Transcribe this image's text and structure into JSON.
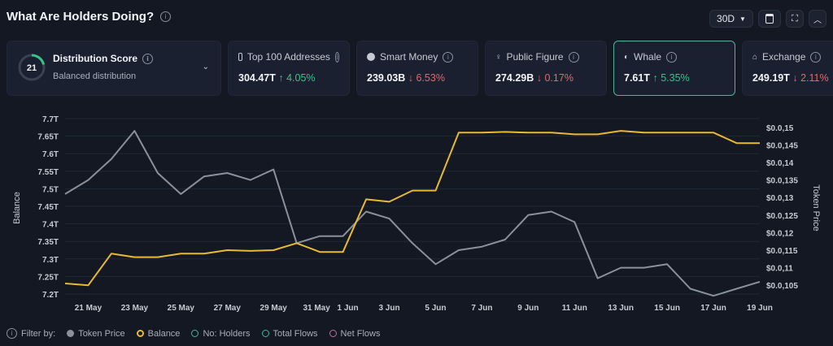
{
  "header": {
    "title": "What Are Holders Doing?",
    "period": "30D"
  },
  "score_card": {
    "score": "21",
    "title": "Distribution Score",
    "subtitle": "Balanced distribution"
  },
  "cards": [
    {
      "label": "Top 100 Addresses",
      "value": "304.47T",
      "change": "4.05%",
      "direction": "up"
    },
    {
      "label": "Smart Money",
      "value": "239.03B",
      "change": "6.53%",
      "direction": "down"
    },
    {
      "label": "Public Figure",
      "value": "274.29B",
      "change": "0.17%",
      "direction": "down"
    },
    {
      "label": "Whale",
      "value": "7.61T",
      "change": "5.35%",
      "direction": "up"
    },
    {
      "label": "Exchange",
      "value": "249.19T",
      "change": "2.11%",
      "direction": "down"
    }
  ],
  "legend": {
    "label": "Filter by:",
    "items": [
      {
        "name": "Token Price",
        "color": "#8a919c",
        "filled": true
      },
      {
        "name": "Balance",
        "color": "#e8b931",
        "filled": false
      },
      {
        "name": "No: Holders",
        "color": "#3fb7a0",
        "filled": false
      },
      {
        "name": "Total Flows",
        "color": "#3fb7a0",
        "filled": false
      },
      {
        "name": "Net Flows",
        "color": "#c46aa0",
        "filled": false
      }
    ]
  },
  "chart_data": {
    "type": "line",
    "xlabel": "",
    "ylabel": "Balance",
    "y2label": "Token Price",
    "ylim": [
      7.2,
      7.7
    ],
    "y2lim": [
      0.01025,
      0.01525
    ],
    "y_ticks": [
      "7.2T",
      "7.25T",
      "7.3T",
      "7.35T",
      "7.4T",
      "7.45T",
      "7.5T",
      "7.55T",
      "7.6T",
      "7.65T",
      "7.7T"
    ],
    "y2_ticks": [
      "$0.0,105",
      "$0.0,11",
      "$0.0,115",
      "$0.0,12",
      "$0.0,125",
      "$0.0,13",
      "$0.0,135",
      "$0.0,14",
      "$0.0,145",
      "$0.0,15"
    ],
    "x_ticks": [
      "21 May",
      "23 May",
      "25 May",
      "27 May",
      "29 May",
      "31 May",
      "1 Jun",
      "3 Jun",
      "5 Jun",
      "7 Jun",
      "9 Jun",
      "11 Jun",
      "13 Jun",
      "15 Jun",
      "17 Jun",
      "19 Jun"
    ],
    "x_tick_index": [
      1,
      3,
      5,
      7,
      9,
      11,
      12,
      14,
      16,
      18,
      20,
      22,
      24,
      26,
      28,
      30
    ],
    "grid": true,
    "series": [
      {
        "name": "Balance",
        "axis": "left",
        "color": "#e8b931",
        "values": [
          7.23,
          7.225,
          7.315,
          7.305,
          7.305,
          7.315,
          7.315,
          7.325,
          7.323,
          7.325,
          7.345,
          7.32,
          7.32,
          7.47,
          7.463,
          7.495,
          7.495,
          7.66,
          7.66,
          7.662,
          7.66,
          7.66,
          7.655,
          7.655,
          7.665,
          7.66,
          7.66,
          7.66,
          7.66,
          7.63,
          7.63
        ]
      },
      {
        "name": "Token Price",
        "axis": "right",
        "color": "#8a919c",
        "values": [
          0.0131,
          0.0135,
          0.0141,
          0.0149,
          0.0137,
          0.0131,
          0.0136,
          0.0137,
          0.0135,
          0.0138,
          0.0117,
          0.0119,
          0.0119,
          0.0126,
          0.0124,
          0.0117,
          0.0111,
          0.0115,
          0.0116,
          0.0118,
          0.0125,
          0.0126,
          0.0123,
          0.0107,
          0.011,
          0.011,
          0.0111,
          0.0104,
          0.0102,
          0.0104,
          0.0106
        ]
      }
    ]
  }
}
